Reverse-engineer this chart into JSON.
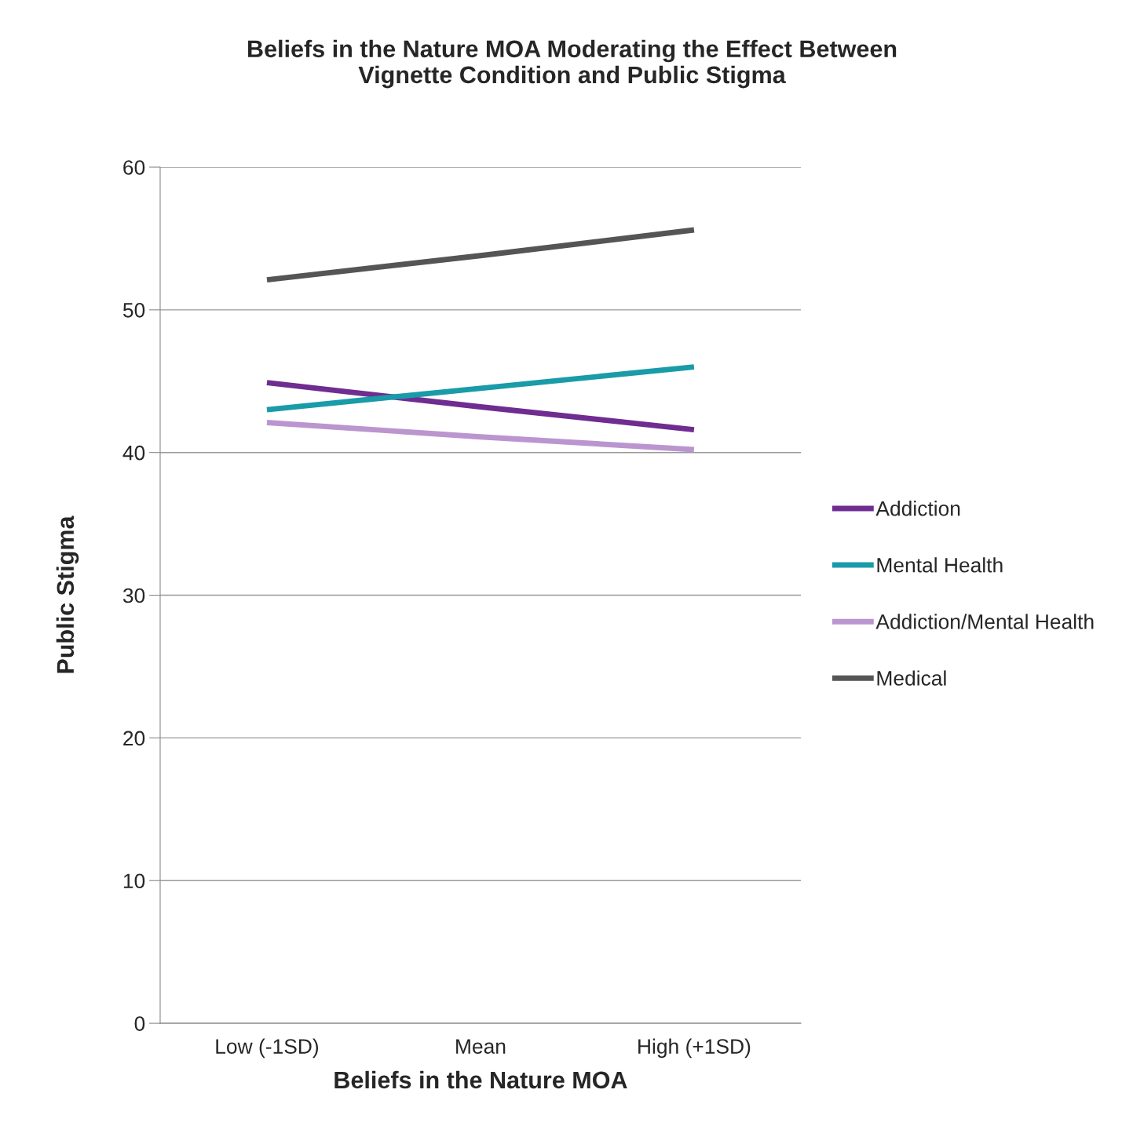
{
  "chart_data": {
    "type": "line",
    "title": "Beliefs in the Nature MOA Moderating the Effect Between\nVignette Condition and Public Stigma",
    "xlabel": "Beliefs in the Nature MOA",
    "ylabel": "Public Stigma",
    "categories": [
      "Low (-1SD)",
      "Mean",
      "High (+1SD)"
    ],
    "series": [
      {
        "name": "Addiction",
        "color": "#6f2c91",
        "values": [
          44.9,
          43.2,
          41.6
        ]
      },
      {
        "name": "Mental Health",
        "color": "#1a9ba8",
        "values": [
          43.0,
          44.5,
          46.0
        ]
      },
      {
        "name": "Addiction/Mental Health",
        "color": "#bb95cf",
        "values": [
          42.1,
          41.1,
          40.2
        ]
      },
      {
        "name": "Medical",
        "color": "#555555",
        "values": [
          52.1,
          53.8,
          55.6
        ]
      }
    ],
    "ylim": [
      0,
      60
    ],
    "yticks": [
      0,
      10,
      20,
      30,
      40,
      50,
      60
    ],
    "grid": "y",
    "legend": "right",
    "marker": "none",
    "line_style": "solid"
  }
}
